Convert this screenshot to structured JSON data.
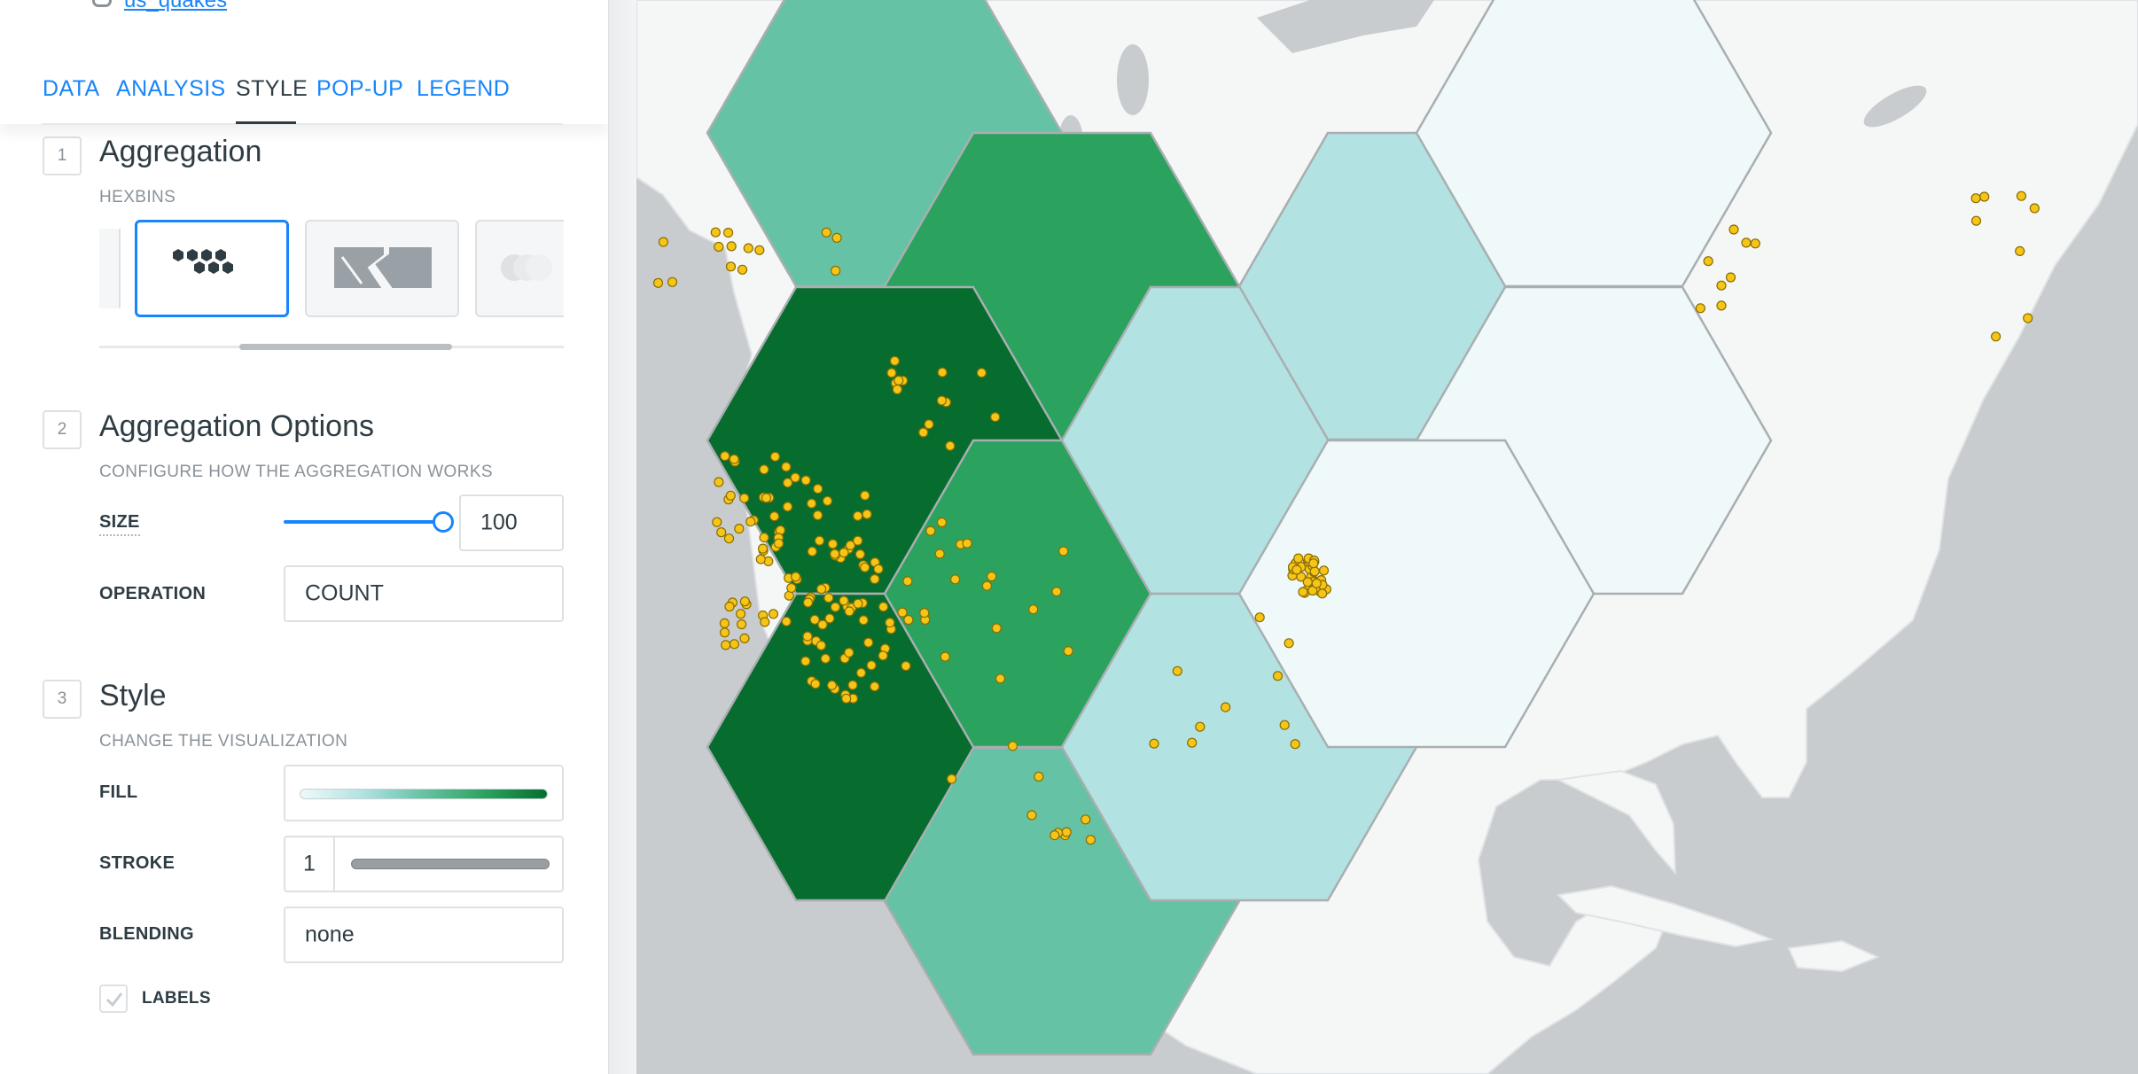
{
  "dataset": {
    "name": "us_quakes"
  },
  "tabs": [
    {
      "label": "DATA",
      "active": false
    },
    {
      "label": "ANALYSIS",
      "active": false
    },
    {
      "label": "STYLE",
      "active": true
    },
    {
      "label": "POP-UP",
      "active": false
    },
    {
      "label": "LEGEND",
      "active": false
    }
  ],
  "sections": {
    "aggregation": {
      "number": "1",
      "title": "Aggregation",
      "subtitle": "HEXBINS"
    },
    "options": {
      "number": "2",
      "title": "Aggregation Options",
      "subtitle": "CONFIGURE HOW THE AGGREGATION WORKS",
      "size_label": "SIZE",
      "size_value": "100",
      "size_slider_fraction": 1.0,
      "operation_label": "OPERATION",
      "operation_value": "COUNT"
    },
    "style": {
      "number": "3",
      "title": "Style",
      "subtitle": "CHANGE THE VISUALIZATION",
      "fill_label": "FILL",
      "stroke_label": "STROKE",
      "stroke_value": "1",
      "blending_label": "BLENDING",
      "blending_value": "none",
      "labels_label": "LABELS",
      "labels_checked": true
    }
  },
  "aggregation_types": [
    {
      "name": "hexbins-icon",
      "selected": true
    },
    {
      "name": "regions-icon",
      "selected": false
    },
    {
      "name": "clusters-icon",
      "selected": false
    }
  ],
  "colors": {
    "accent": "#1785fb",
    "ramp": [
      "#eff9f9",
      "#b2e2e2",
      "#66c2a4",
      "#2ca25f",
      "#066d2f"
    ],
    "point": "#f5c518",
    "land": "#f5f6f6",
    "water": "#c8cccf"
  }
}
